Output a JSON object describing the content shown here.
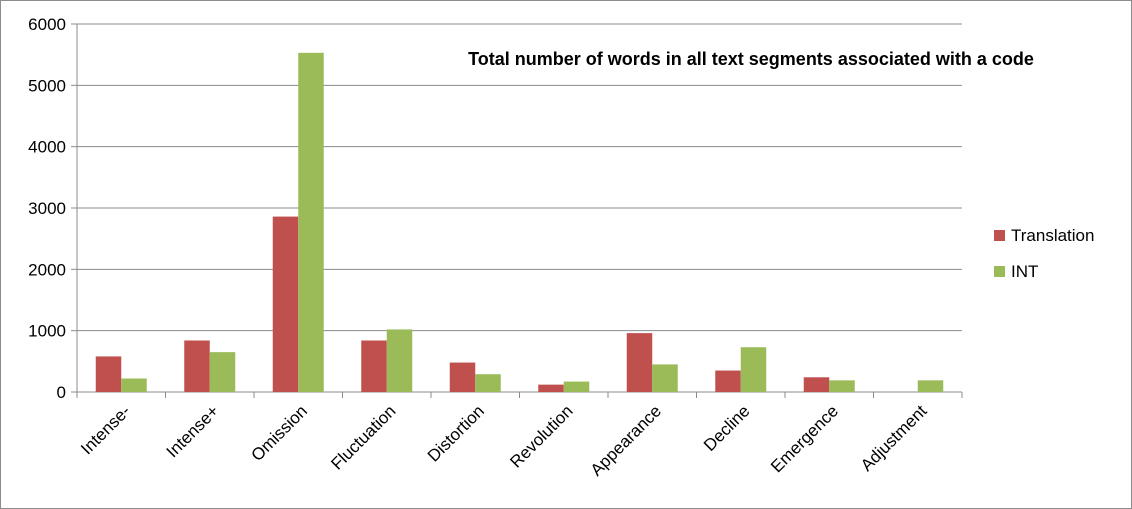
{
  "chart_data": {
    "type": "bar",
    "title": "Total number of words in all text segments associated with a code",
    "xlabel": "",
    "ylabel": "",
    "categories": [
      "Intense-",
      "Intense+",
      "Omission",
      "Fluctuation",
      "Distortion",
      "Revolution",
      "Appearance",
      "Decline",
      "Emergence",
      "Adjustment"
    ],
    "series": [
      {
        "name": "Translation",
        "color": "#c0504d",
        "values": [
          580,
          840,
          2860,
          840,
          480,
          120,
          960,
          350,
          240,
          0
        ]
      },
      {
        "name": "INT",
        "color": "#9bbb59",
        "values": [
          220,
          650,
          5530,
          1020,
          290,
          170,
          450,
          730,
          190,
          190
        ]
      }
    ],
    "ylim": [
      0,
      6000
    ],
    "yticks": [
      0,
      1000,
      2000,
      3000,
      4000,
      5000,
      6000
    ],
    "grid": true,
    "legend": "right"
  }
}
